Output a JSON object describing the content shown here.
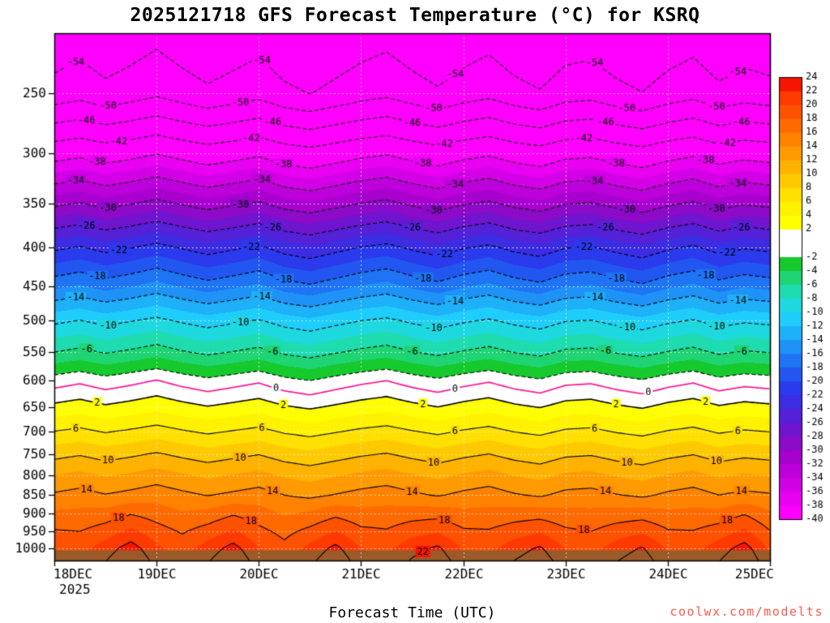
{
  "chart_data": {
    "type": "heatmap",
    "title": "2025121718 GFS Forecast Temperature (°C) for KSRQ",
    "xlabel": "Forecast Time (UTC)",
    "watermark": "coolwx.com/modelts",
    "year_label": "2025",
    "x_day_ticks": {
      "labels": [
        "18DEC",
        "19DEC",
        "20DEC",
        "21DEC",
        "22DEC",
        "23DEC",
        "24DEC",
        "25DEC"
      ],
      "hours": [
        0,
        24,
        48,
        72,
        96,
        120,
        144,
        168
      ]
    },
    "y_ticks_hpa": [
      250,
      300,
      350,
      400,
      450,
      500,
      550,
      600,
      650,
      700,
      750,
      800,
      850,
      900,
      950,
      1000
    ],
    "y_scale": "log-pressure",
    "x_hours": [
      0,
      6,
      12,
      18,
      24,
      30,
      36,
      42,
      48,
      54,
      60,
      66,
      72,
      78,
      84,
      90,
      96,
      102,
      108,
      114,
      120,
      126,
      132,
      138,
      144,
      150,
      156,
      162,
      168
    ],
    "pressure_levels_hpa": [
      200,
      250,
      300,
      350,
      400,
      450,
      500,
      550,
      600,
      650,
      700,
      750,
      800,
      850,
      900,
      950,
      1000,
      1050
    ],
    "temperature_grid_c": [
      [
        -58,
        -57,
        -58.4,
        -57.4,
        -56.2,
        -57.6,
        -58.8,
        -57.8,
        -56.8,
        -58.6,
        -59.6,
        -58.4,
        -57.2,
        -56.4,
        -57.8,
        -59,
        -57.6,
        -56.6,
        -58.2,
        -59.2,
        -57.4,
        -57,
        -58.4,
        -59.4,
        -57.8,
        -56.8,
        -58.6,
        -57.6,
        -58.2
      ],
      [
        -52.5,
        -51.5,
        -52.9,
        -51.9,
        -50.7,
        -52.1,
        -53.3,
        -52.3,
        -51.3,
        -53.1,
        -54.1,
        -52.9,
        -51.7,
        -50.9,
        -52.3,
        -53.5,
        -52.1,
        -51.1,
        -52.7,
        -53.7,
        -51.9,
        -51.5,
        -52.9,
        -53.9,
        -52.3,
        -51.3,
        -53.1,
        -52.1,
        -52.7
      ],
      [
        -39.5,
        -38.8,
        -39.8,
        -39.1,
        -38.2,
        -39.2,
        -40.1,
        -39.4,
        -38.6,
        -40,
        -40.7,
        -39.8,
        -38.9,
        -38.3,
        -39.4,
        -40.3,
        -39.2,
        -38.5,
        -39.7,
        -40.4,
        -39.1,
        -38.8,
        -39.8,
        -40.6,
        -39.4,
        -38.6,
        -40,
        -39.2,
        -39.7
      ],
      [
        -30.5,
        -29.8,
        -30.8,
        -30.1,
        -29.2,
        -30.2,
        -31.1,
        -30.4,
        -29.6,
        -31,
        -31.7,
        -30.8,
        -29.9,
        -29.3,
        -30.4,
        -31.3,
        -30.2,
        -29.5,
        -30.7,
        -31.4,
        -30.1,
        -29.8,
        -30.8,
        -31.6,
        -30.4,
        -29.6,
        -31,
        -30.2,
        -30.7
      ],
      [
        -22.5,
        -21.8,
        -22.8,
        -22.1,
        -21.2,
        -22.2,
        -23.1,
        -22.4,
        -21.6,
        -23,
        -23.7,
        -22.8,
        -21.9,
        -21.3,
        -22.4,
        -23.3,
        -22.2,
        -21.5,
        -22.7,
        -23.4,
        -22.1,
        -21.8,
        -22.8,
        -23.6,
        -22.4,
        -21.6,
        -23,
        -22.2,
        -22.7
      ],
      [
        -16.5,
        -15.8,
        -16.8,
        -16.1,
        -15.2,
        -16.2,
        -17.1,
        -16.4,
        -15.6,
        -17,
        -17.7,
        -16.8,
        -15.9,
        -15.3,
        -16.4,
        -17.3,
        -16.2,
        -15.5,
        -16.7,
        -17.4,
        -16.1,
        -15.8,
        -16.8,
        -17.6,
        -16.4,
        -15.6,
        -17,
        -16.2,
        -16.7
      ],
      [
        -10.5,
        -9.9,
        -10.7,
        -10.1,
        -9.4,
        -10.3,
        -11,
        -10.4,
        -9.8,
        -10.9,
        -11.5,
        -10.7,
        -10,
        -9.5,
        -10.4,
        -11.1,
        -10.3,
        -9.7,
        -10.6,
        -11.2,
        -10.1,
        -9.9,
        -10.7,
        -11.3,
        -10.4,
        -9.8,
        -10.9,
        -10.3,
        -10.6
      ],
      [
        -6,
        -5.4,
        -6.2,
        -5.6,
        -4.9,
        -5.8,
        -6.5,
        -5.9,
        -5.3,
        -6.4,
        -7,
        -6.2,
        -5.5,
        -5,
        -5.9,
        -6.6,
        -5.8,
        -5.2,
        -6.1,
        -6.7,
        -5.6,
        -5.4,
        -6.2,
        -6.8,
        -5.9,
        -5.3,
        -6.4,
        -5.8,
        -6.1
      ],
      [
        -1,
        -0.4,
        -1.2,
        -0.6,
        0.1,
        -0.8,
        -1.5,
        -0.9,
        -0.3,
        -1.4,
        -2,
        -1.2,
        -0.5,
        0,
        -0.9,
        -1.6,
        -0.8,
        -0.2,
        -1.1,
        -1.7,
        -0.6,
        -0.4,
        -1.2,
        -1.8,
        -0.9,
        -0.3,
        -1.4,
        -0.8,
        -1.1
      ],
      [
        2.5,
        3,
        2.3,
        2.8,
        3.4,
        2.7,
        2.1,
        2.6,
        3.1,
        2.2,
        1.7,
        2.3,
        2.9,
        3.3,
        2.6,
        2,
        2.7,
        3.2,
        2.4,
        1.9,
        2.8,
        3,
        2.3,
        1.8,
        2.6,
        3.1,
        2.2,
        2.7,
        2.4
      ],
      [
        6,
        6.5,
        5.8,
        6.3,
        6.9,
        6.2,
        5.6,
        6.1,
        6.6,
        5.7,
        5.2,
        5.8,
        6.4,
        6.8,
        6.1,
        5.5,
        6.2,
        6.7,
        5.9,
        5.4,
        6.3,
        6.5,
        5.8,
        5.3,
        6.1,
        6.6,
        5.7,
        6.2,
        5.9
      ],
      [
        9.3,
        9.8,
        9.1,
        9.6,
        10.2,
        9.5,
        8.9,
        9.4,
        9.9,
        9,
        8.5,
        9.1,
        9.7,
        10.1,
        9.4,
        8.8,
        9.5,
        10,
        9.2,
        8.7,
        9.6,
        9.8,
        9.1,
        8.6,
        9.4,
        9.9,
        9,
        9.5,
        9.2
      ],
      [
        12,
        12.5,
        11.8,
        12.3,
        12.9,
        12.2,
        11.6,
        12.1,
        12.6,
        11.7,
        11.2,
        11.8,
        12.4,
        12.8,
        12.1,
        11.5,
        12.2,
        12.7,
        11.9,
        11.4,
        12.3,
        12.5,
        11.8,
        11.3,
        12.1,
        12.6,
        11.7,
        12.2,
        11.9
      ],
      [
        14.3,
        14.8,
        14.1,
        14.6,
        15.2,
        14.5,
        13.9,
        14.4,
        14.9,
        14,
        13.5,
        14.1,
        14.7,
        15.1,
        14.4,
        13.8,
        14.5,
        15,
        14.2,
        13.7,
        14.6,
        14.8,
        14.1,
        13.6,
        14.4,
        14.9,
        14,
        14.5,
        14.2
      ],
      [
        16.4,
        16.5,
        16.9,
        17.9,
        17.1,
        16.2,
        16.7,
        17.8,
        16.9,
        15.8,
        16.4,
        17.5,
        16.7,
        16.7,
        17.1,
        17.3,
        16.6,
        16.6,
        17,
        17.2,
        16.6,
        16.5,
        16.9,
        17.1,
        16.5,
        16.5,
        16.8,
        17.9,
        16.3
      ],
      [
        18.2,
        18,
        19,
        20.5,
        18.9,
        17.8,
        18.9,
        20.3,
        18.6,
        17.4,
        18.6,
        20.1,
        18.5,
        18.2,
        19.3,
        19.8,
        18.3,
        18.2,
        19.1,
        19.8,
        18.4,
        18,
        19,
        19.7,
        18.2,
        18.1,
        19,
        20.4,
        18.1
      ],
      [
        19.6,
        19.2,
        21,
        23,
        20.4,
        19,
        20.9,
        22.8,
        20.1,
        18.6,
        20.6,
        22.6,
        20,
        19.4,
        21.3,
        22.4,
        19.8,
        19.4,
        21.1,
        22.3,
        19.9,
        19.2,
        21,
        22.2,
        19.7,
        19.3,
        21,
        22.9,
        19.6
      ],
      [
        20.8,
        20.4,
        22.2,
        24.2,
        21.6,
        20.2,
        22.1,
        24,
        21.3,
        19.8,
        21.8,
        23.8,
        21.2,
        20.6,
        22.5,
        23.6,
        21,
        20.6,
        22.3,
        23.5,
        21.1,
        20.4,
        22.2,
        23.4,
        20.9,
        20.5,
        22.2,
        24.1,
        20.8
      ]
    ],
    "contour_interval_c": 4,
    "contour_levels_c": [
      -54,
      -50,
      -46,
      -42,
      -38,
      -34,
      -30,
      -26,
      -22,
      -18,
      -14,
      -10,
      -6,
      -2,
      2,
      6,
      10,
      14,
      18,
      22
    ],
    "unlabeled_contours_c": [
      -2
    ],
    "freezing_line": {
      "value_c": 0,
      "label": "0",
      "color": "#ff1493"
    },
    "surface_band": {
      "from_hpa": 1006,
      "color": "#9b5a2a"
    },
    "colorbar": {
      "tick_labels": [
        24,
        22,
        20,
        18,
        16,
        14,
        12,
        10,
        8,
        6,
        4,
        2,
        -2,
        -4,
        -6,
        -8,
        -10,
        -12,
        -14,
        -16,
        -18,
        -20,
        -22,
        -24,
        -26,
        -28,
        -30,
        -32,
        -34,
        -36,
        -38,
        -40
      ],
      "band_edges_c": [
        -40,
        -38,
        -36,
        -34,
        -32,
        -30,
        -28,
        -26,
        -24,
        -22,
        -20,
        -18,
        -16,
        -14,
        -12,
        -10,
        -8,
        -6,
        -4,
        -2,
        2,
        4,
        6,
        8,
        10,
        12,
        14,
        16,
        18,
        20,
        22,
        24
      ],
      "band_colors": [
        "#ff00ff",
        "#e900f3",
        "#d300e7",
        "#bd00db",
        "#a700cf",
        "#8d0ac8",
        "#6f14cf",
        "#5420d8",
        "#3c2ce2",
        "#2a3aec",
        "#2256f0",
        "#1e74f4",
        "#1e92f6",
        "#1eb0f8",
        "#1ecdfa",
        "#1ed8e0",
        "#1edcae",
        "#1ed473",
        "#16c92d",
        "#ffffff",
        "#ffff00",
        "#fff200",
        "#ffe000",
        "#ffc900",
        "#ffb200",
        "#ff9a00",
        "#ff8200",
        "#ff6a00",
        "#ff5200",
        "#ff3a00",
        "#f51500"
      ],
      "over_color": "#cc0000",
      "under_color": "#ff00ff"
    }
  }
}
